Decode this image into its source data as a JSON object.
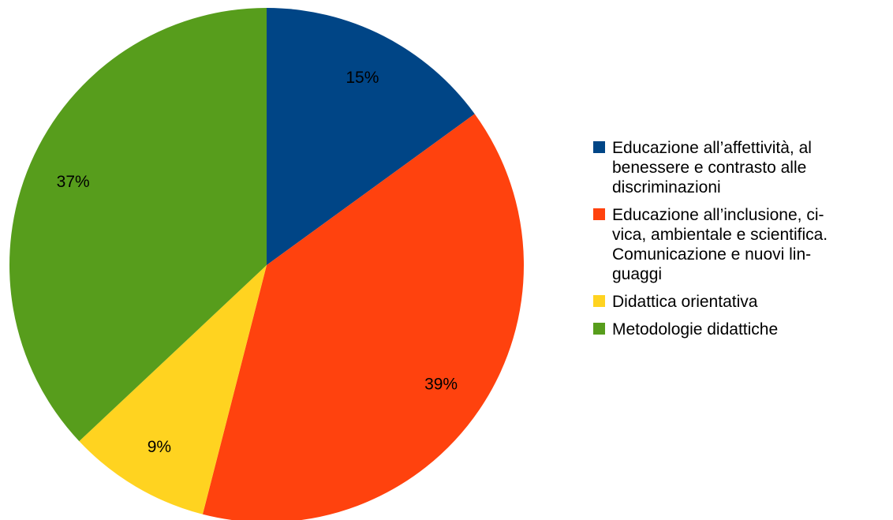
{
  "chart_data": {
    "type": "pie",
    "title": "",
    "start_angle_deg": 0,
    "direction": "clockwise",
    "legend_position": "right",
    "slices": [
      {
        "label": "Educazione all’affettività, al benessere e contrasto alle discriminazioni",
        "legend_lines": [
          "Educazione all’affettività, al",
          "benessere e contrasto alle",
          "discriminazioni"
        ],
        "value": 15,
        "display": "15%",
        "color": "#004586"
      },
      {
        "label": "Educazione all’inclusione, civica, ambientale e scientifica. Comunicazione e nuovi linguaggi",
        "legend_lines": [
          "Educazione all’inclusione, ci-",
          "vica, ambientale e scientifica.",
          "Comunicazione e nuovi lin-",
          "guaggi"
        ],
        "value": 39,
        "display": "39%",
        "color": "#ff420e"
      },
      {
        "label": "Didattica orientativa",
        "legend_lines": [
          "Didattica orientativa"
        ],
        "value": 9,
        "display": "9%",
        "color": "#ffd320"
      },
      {
        "label": "Metodologie didattiche",
        "legend_lines": [
          "Metodologie didattiche"
        ],
        "value": 37,
        "display": "37%",
        "color": "#579d1c"
      }
    ]
  }
}
